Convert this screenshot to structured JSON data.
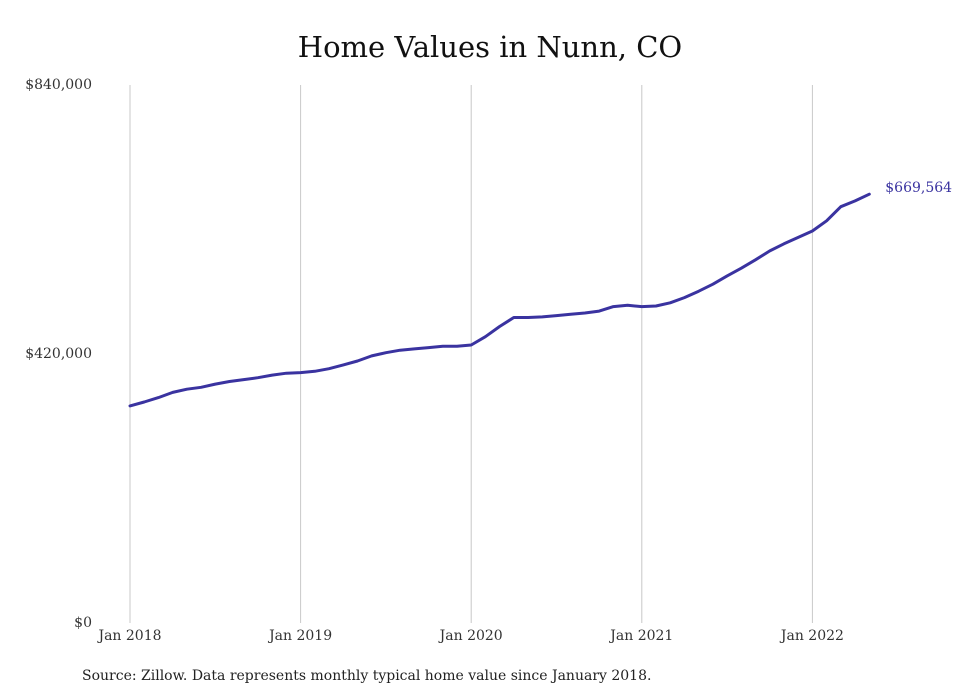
{
  "chart_data": {
    "type": "line",
    "title": "Home Values in Nunn, CO",
    "xlabel": "",
    "ylabel": "",
    "ylim": [
      0,
      840000
    ],
    "y_ticks": [
      "$0",
      "$420,000",
      "$840,000"
    ],
    "y_tick_values": [
      0,
      420000,
      840000
    ],
    "x_tick_labels": [
      "Jan 2018",
      "Jan 2019",
      "Jan 2020",
      "Jan 2021",
      "Jan 2022"
    ],
    "x_tick_values": [
      "2018-01",
      "2019-01",
      "2020-01",
      "2021-01",
      "2022-01"
    ],
    "grid": "vertical",
    "line_color": "#3a33a0",
    "series": [
      {
        "x": [
          "2018-01",
          "2018-02",
          "2018-03",
          "2018-04",
          "2018-05",
          "2018-06",
          "2018-07",
          "2018-08",
          "2018-09",
          "2018-10",
          "2018-11",
          "2018-12",
          "2019-01",
          "2019-02",
          "2019-03",
          "2019-04",
          "2019-05",
          "2019-06",
          "2019-07",
          "2019-08",
          "2019-09",
          "2019-10",
          "2019-11",
          "2019-12",
          "2020-01",
          "2020-02",
          "2020-03",
          "2020-04",
          "2020-05",
          "2020-06",
          "2020-07",
          "2020-08",
          "2020-09",
          "2020-10",
          "2020-11",
          "2020-12",
          "2021-01",
          "2021-02",
          "2021-03",
          "2021-04",
          "2021-05",
          "2021-06",
          "2021-07",
          "2021-08",
          "2021-09",
          "2021-10",
          "2021-11",
          "2021-12",
          "2022-01",
          "2022-02",
          "2022-03",
          "2022-04",
          "2022-05"
        ],
        "values": [
          339000,
          345000,
          352000,
          360000,
          365000,
          368000,
          373000,
          377000,
          380000,
          383000,
          387000,
          390000,
          391000,
          393000,
          397000,
          403000,
          409000,
          417000,
          422000,
          426000,
          428000,
          430000,
          432000,
          432000,
          434000,
          447000,
          463000,
          477000,
          477000,
          478000,
          480000,
          482000,
          484000,
          487000,
          494000,
          496000,
          494000,
          495000,
          500000,
          508000,
          518000,
          529000,
          542000,
          554000,
          567000,
          581000,
          592000,
          602000,
          612000,
          628000,
          650000,
          659000,
          669564
        ]
      }
    ],
    "end_label": "$669,564"
  },
  "source_note": "Source: Zillow. Data represents monthly typical home value since January 2018."
}
